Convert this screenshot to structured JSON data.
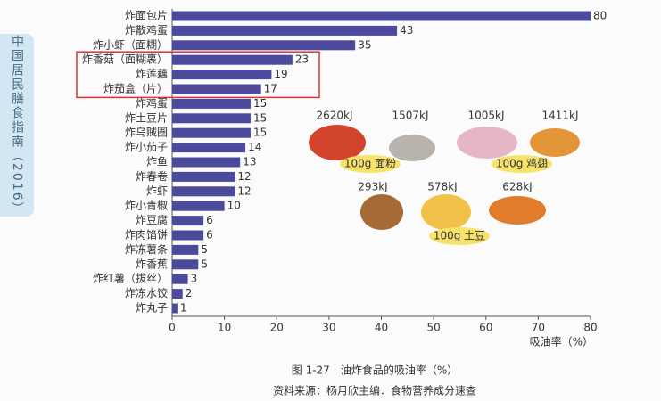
{
  "side_tab": "中国居民膳食指南（2016）",
  "chart_data": {
    "type": "bar",
    "orientation": "horizontal",
    "title": "图 1-27　油炸食品的吸油率（%）",
    "source": "资料来源：杨月欣主编．食物营养成分速查",
    "xlabel": "吸油率（%）",
    "categories": [
      "炸面包片",
      "炸散鸡蛋",
      "炸小虾（面糊）",
      "炸香菇（面糊裹）",
      "炸莲藕",
      "炸茄盒（片）",
      "炸鸡蛋",
      "炸土豆片",
      "炸乌贼圈",
      "炸小茄子",
      "炸鱼",
      "炸春卷",
      "炸虾",
      "炸小青椒",
      "炸豆腐",
      "炸肉馅饼",
      "炸冻薯条",
      "炸香蕉",
      "炸红薯（拔丝）",
      "炸冻水饺",
      "炸丸子"
    ],
    "values": [
      80,
      43,
      35,
      23,
      19,
      17,
      15,
      15,
      15,
      14,
      13,
      12,
      12,
      10,
      6,
      6,
      5,
      5,
      3,
      2,
      1
    ],
    "color": "#4b4a9c",
    "xlim": [
      0,
      80
    ],
    "xticks": [
      0,
      10,
      20,
      30,
      40,
      50,
      60,
      70,
      80
    ],
    "annotations": [
      "2620kJ",
      "1507kJ",
      "1005kJ",
      "1411kJ",
      "100g 面粉",
      "100g 鸡翅",
      "293kJ",
      "578kJ",
      "628kJ",
      "100g 土豆"
    ]
  }
}
